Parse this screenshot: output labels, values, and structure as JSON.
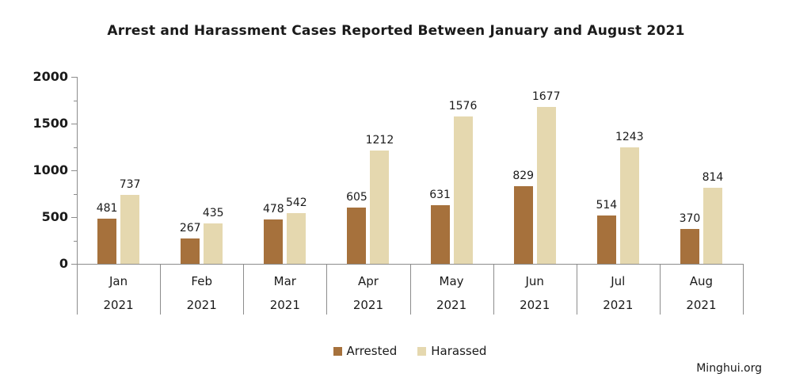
{
  "title": "Arrest and Harassment Cases Reported Between January and August 2021",
  "source": "Minghui.org",
  "colors": {
    "arrested": "#A6713C",
    "harassed": "#E5D8AF",
    "axis": "#8c8c8c",
    "text": "#1a1a1a"
  },
  "chart_data": {
    "type": "bar",
    "title": "Arrest and Harassment Cases Reported Between January and August 2021",
    "categories": [
      "Jan",
      "Feb",
      "Mar",
      "Apr",
      "May",
      "Jun",
      "Jul",
      "Aug"
    ],
    "category_year": "2021",
    "series": [
      {
        "name": "Arrested",
        "color": "#A6713C",
        "values": [
          481,
          267,
          478,
          605,
          631,
          829,
          514,
          370
        ]
      },
      {
        "name": "Harassed",
        "color": "#E5D8AF",
        "values": [
          737,
          435,
          542,
          1212,
          1576,
          1677,
          1243,
          814
        ]
      }
    ],
    "xlabel": "",
    "ylabel": "",
    "ylim": [
      0,
      2000
    ],
    "yticks": [
      0,
      500,
      1000,
      1500,
      2000
    ],
    "minor_ytick_step": 250,
    "grid": false,
    "legend_position": "bottom",
    "value_labels": true,
    "source": "Minghui.org"
  }
}
